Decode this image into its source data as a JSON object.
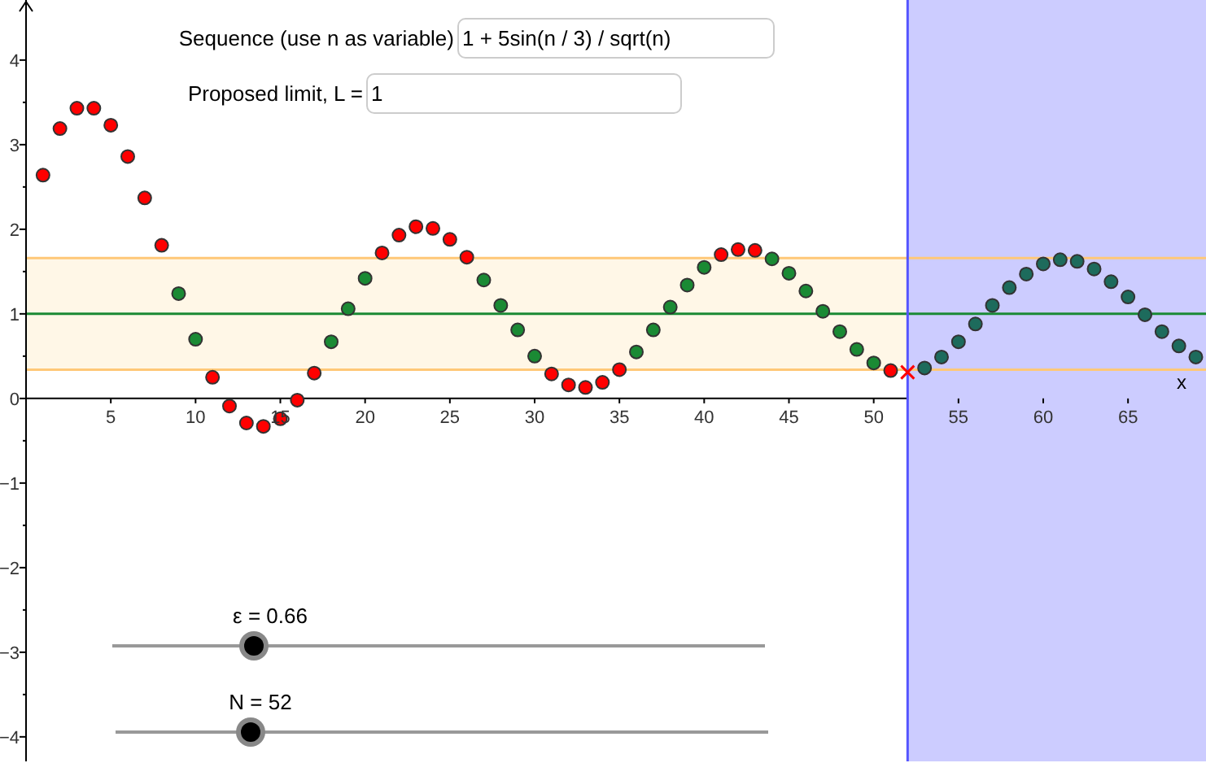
{
  "chart_data": {
    "type": "scatter",
    "xlabel": "x",
    "xlim": [
      0,
      69.6
    ],
    "ylim": [
      -4.29,
      4.71
    ],
    "xticks": [
      5,
      10,
      15,
      20,
      25,
      30,
      35,
      40,
      45,
      50,
      55,
      60,
      65
    ],
    "yticks": [
      {
        "value": -4,
        "label": "−4"
      },
      {
        "value": -3.5,
        "label": null
      },
      {
        "value": -3,
        "label": "−3"
      },
      {
        "value": -2.5,
        "label": null
      },
      {
        "value": -2,
        "label": "−2"
      },
      {
        "value": -1.5,
        "label": null
      },
      {
        "value": -1,
        "label": "−1"
      },
      {
        "value": -0.5,
        "label": null
      },
      0,
      {
        "value": 0.5,
        "label": null
      },
      1,
      {
        "value": 1.5,
        "label": null
      },
      2,
      {
        "value": 2.5,
        "label": null
      },
      3,
      {
        "value": 3.5,
        "label": null
      },
      4
    ],
    "marker": "circle",
    "series": [
      {
        "color": "#ff0000",
        "x": [
          1,
          2,
          3,
          4,
          5,
          6,
          7,
          8,
          11,
          12,
          13,
          14,
          15,
          16,
          17,
          21,
          22,
          23,
          24,
          25,
          26,
          31,
          32,
          33,
          34,
          35,
          41,
          42,
          43,
          51
        ],
        "values": [
          2.64,
          3.19,
          3.43,
          3.43,
          3.23,
          2.86,
          2.37,
          1.81,
          0.25,
          -0.09,
          -0.29,
          -0.33,
          -0.24,
          -0.02,
          0.3,
          1.72,
          1.93,
          2.03,
          2.01,
          1.88,
          1.67,
          0.29,
          0.16,
          0.13,
          0.19,
          0.34,
          1.7,
          1.76,
          1.75,
          0.33
        ]
      },
      {
        "color": "#1a8a34",
        "x": [
          9,
          10,
          18,
          19,
          20,
          27,
          28,
          29,
          30,
          36,
          37,
          38,
          39,
          40,
          44,
          45,
          46,
          47,
          48,
          49,
          50
        ],
        "values": [
          1.24,
          0.7,
          0.67,
          1.06,
          1.42,
          1.4,
          1.1,
          0.81,
          0.5,
          0.55,
          0.81,
          1.08,
          1.34,
          1.55,
          1.65,
          1.48,
          1.27,
          1.03,
          0.79,
          0.58,
          0.42
        ]
      },
      {
        "color": "#1d6b5c",
        "x": [
          53,
          54,
          55,
          56,
          57,
          58,
          59,
          60,
          61,
          62,
          63,
          64,
          65,
          66,
          67,
          68,
          69
        ],
        "values": [
          0.36,
          0.49,
          0.67,
          0.88,
          1.1,
          1.31,
          1.47,
          1.59,
          1.64,
          1.62,
          1.53,
          1.38,
          1.2,
          0.99,
          0.79,
          0.62,
          0.49
        ]
      },
      {
        "color": "#ff0000",
        "marker": "cross",
        "x": [
          52
        ],
        "values": [
          0.31
        ]
      }
    ],
    "bands": [
      {
        "axis": "y",
        "from": 0.34,
        "to": 1.66,
        "color": "#fff6e4"
      },
      {
        "axis": "x",
        "from": 52,
        "to": 69.6,
        "color": "#ccccff"
      }
    ],
    "ref_lines": [
      {
        "axis": "y",
        "value": 0.34,
        "color": "#ffc878"
      },
      {
        "axis": "y",
        "value": 1.66,
        "color": "#ffc878"
      },
      {
        "axis": "y",
        "value": 1,
        "color": "#1a8a34"
      },
      {
        "axis": "x",
        "value": 52,
        "color": "#5555ff"
      }
    ],
    "annotations": [
      "Sequence (use n as variable)",
      "1 + 5sin(n / 3) / sqrt(n)",
      "Proposed limit, L =",
      "1",
      "ε = 0.66",
      "N = 52"
    ]
  }
}
